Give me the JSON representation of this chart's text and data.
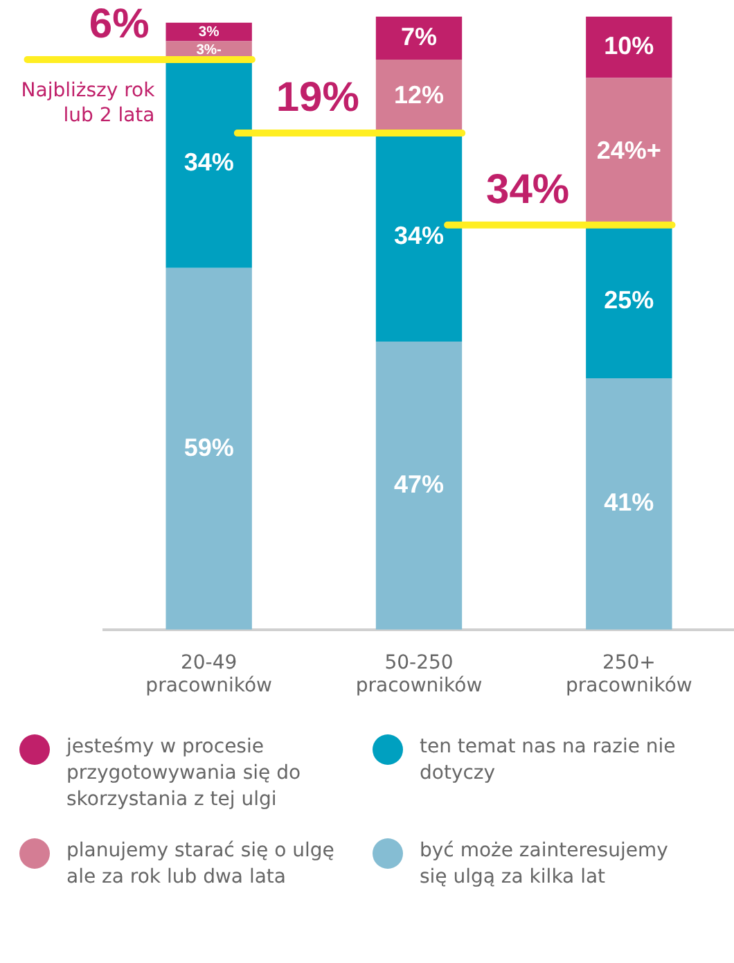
{
  "chart_data": {
    "type": "bar",
    "stacked": true,
    "categories": [
      "20-49 pracowników",
      "50-250 pracowników",
      "250+ pracowników"
    ],
    "series": [
      {
        "name": "być może zainteresujemy się ulgą za kilka lat",
        "color": "#85bdd3",
        "values": [
          59,
          47,
          41
        ],
        "value_labels": [
          "59%",
          "47%",
          "41%"
        ]
      },
      {
        "name": "ten temat nas na razie nie dotyczy",
        "color": "#00a0c0",
        "values": [
          34,
          34,
          25
        ],
        "value_labels": [
          "34%",
          "34%",
          "25%"
        ]
      },
      {
        "name": "planujemy starać się o ulgę ale za rok lub dwa lata",
        "color": "#d47d94",
        "values": [
          3,
          12,
          24
        ],
        "value_labels": [
          "3%-",
          "12%",
          "24%+"
        ]
      },
      {
        "name": "jesteśmy w procesie przygotowywania się do skorzystania z tej ulgi",
        "color": "#c0206a",
        "values": [
          3,
          7,
          10
        ],
        "value_labels": [
          "3%",
          "7%",
          "10%"
        ]
      }
    ],
    "ylim": [
      0,
      100
    ],
    "tick_labels": "x",
    "grid": false,
    "legend": "bottom",
    "annotations": [
      {
        "text": "6%",
        "x": "20-49 pracowników",
        "y": 93
      },
      {
        "text": "19%",
        "x": "50-250 pracowników",
        "y": 81
      },
      {
        "text": "34%",
        "x": "250+ pracowników",
        "y": 66
      },
      "Najbliższy rok lub 2 lata"
    ]
  }
}
